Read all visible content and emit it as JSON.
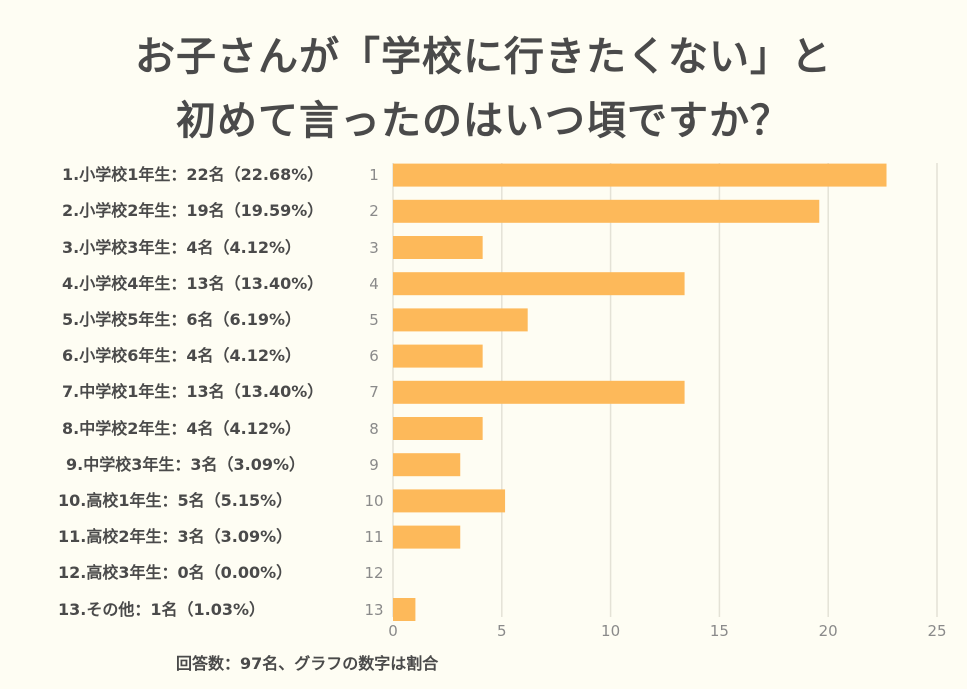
{
  "title_line1": "お子さんが「学校に行きたくない」と",
  "title_line2": "初めて言ったのはいつ頃ですか？",
  "footnote": "回答数：97名、グラフの数字は割合",
  "colors": {
    "bar": "#fdb95a",
    "grid": "#e4e2d6",
    "background": "#fefdf3",
    "text": "#4a4a4a"
  },
  "chart_data": {
    "type": "bar",
    "orientation": "horizontal",
    "title": "お子さんが「学校に行きたくない」と初めて言ったのはいつ頃ですか？",
    "xlabel": "",
    "ylabel": "",
    "xlim": [
      0,
      25
    ],
    "xticks": [
      0,
      5,
      10,
      15,
      20,
      25
    ],
    "grid": true,
    "categories": [
      "1",
      "2",
      "3",
      "4",
      "5",
      "6",
      "7",
      "8",
      "9",
      "10",
      "11",
      "12",
      "13"
    ],
    "labels": [
      "1.小学校1年生：22名（22.68%）",
      "2.小学校2年生：19名（19.59%）",
      "3.小学校3年生：4名（4.12%）",
      "4.小学校4年生：13名（13.40%）",
      "5.小学校5年生：6名（6.19%）",
      "6.小学校6年生：4名（4.12%）",
      "7.中学校1年生：13名（13.40%）",
      "8.中学校2年生：4名（4.12%）",
      "9.中学校3年生：3名（3.09%）",
      "10.高校1年生：5名（5.15%）",
      "11.高校2年生：3名（3.09%）",
      "12.高校3年生：0名（0.00%）",
      "13.その他：1名（1.03%）"
    ],
    "values": [
      22.68,
      19.59,
      4.12,
      13.4,
      6.19,
      4.12,
      13.4,
      4.12,
      3.09,
      5.15,
      3.09,
      0.0,
      1.03
    ],
    "counts": [
      22,
      19,
      4,
      13,
      6,
      4,
      13,
      4,
      3,
      5,
      3,
      0,
      1
    ],
    "total_respondents": 97
  }
}
